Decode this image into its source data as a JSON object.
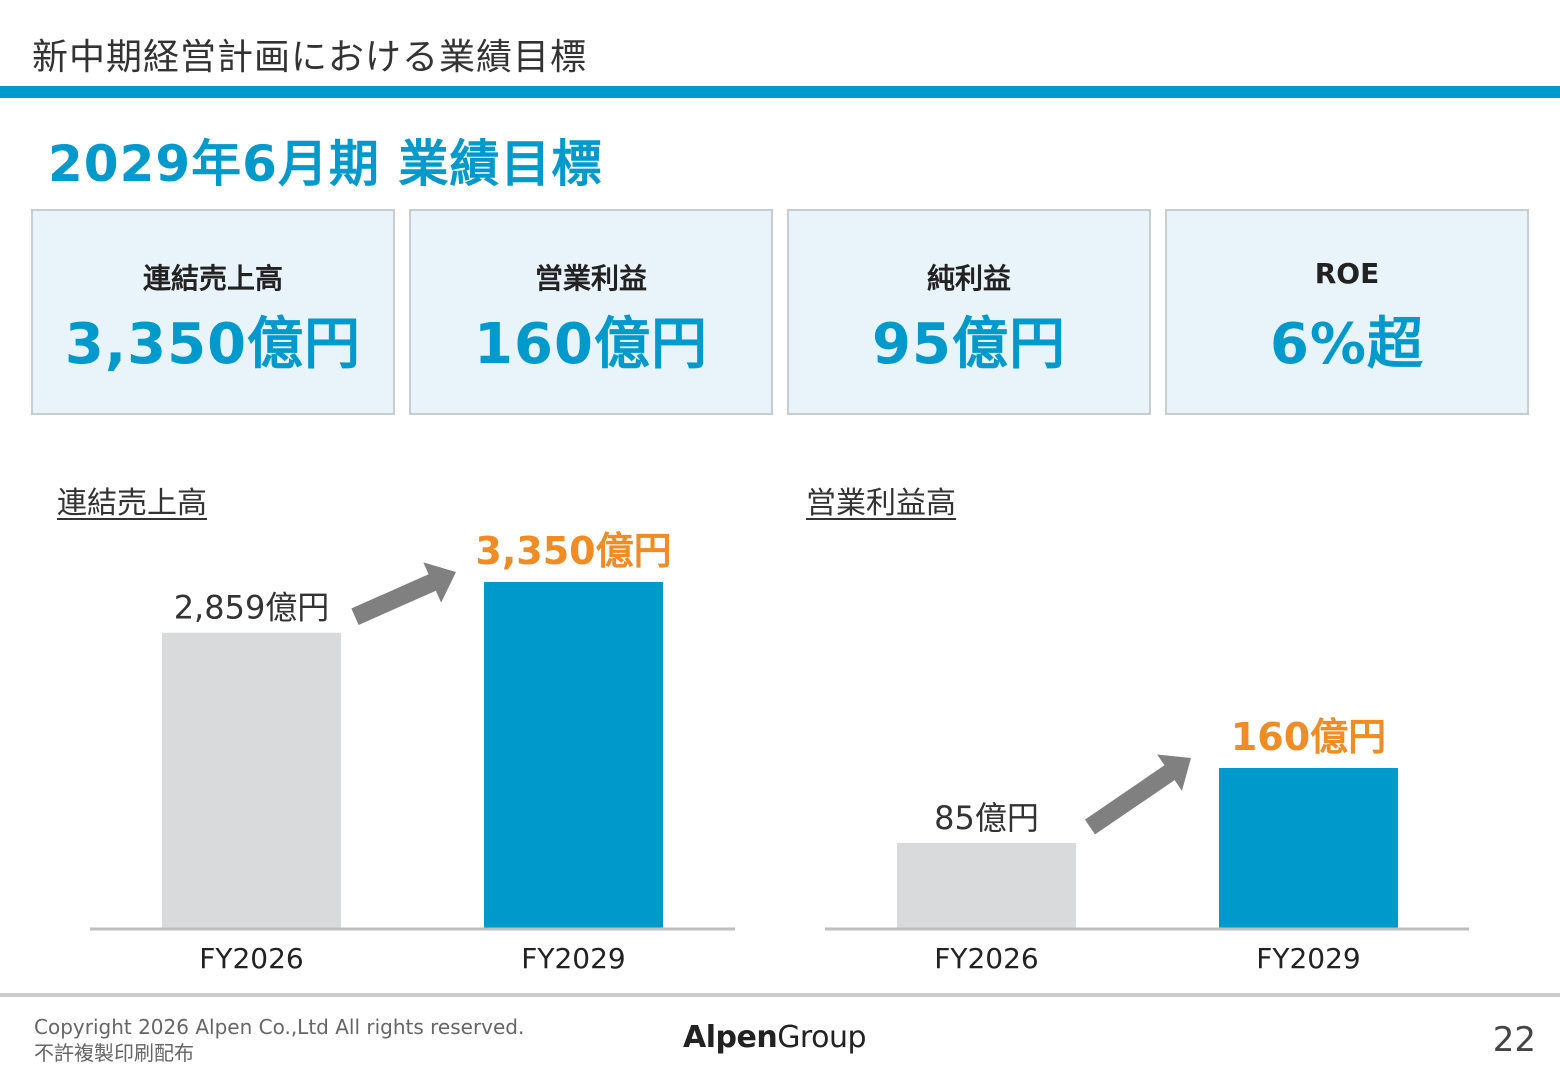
{
  "header": {
    "title": "新中期経営計画における業績目標"
  },
  "main_title": "2029年6月期 業績目標",
  "kpis": [
    {
      "label": "連結売上高",
      "value": "3,350億円"
    },
    {
      "label": "営業利益",
      "value": "160億円"
    },
    {
      "label": "純利益",
      "value": "95億円"
    },
    {
      "label": "ROE",
      "value": "6%超"
    }
  ],
  "colors": {
    "accent": "#0099cc",
    "highlight": "#f08c24",
    "baseline_bar": "#d9dadb",
    "arrow": "#808080"
  },
  "chart_data": [
    {
      "type": "bar",
      "title": "連結売上高",
      "categories": [
        "FY2026",
        "FY2029"
      ],
      "values": [
        2859,
        3350
      ],
      "value_labels": [
        "2,859億円",
        "3,350億円"
      ],
      "unit": "億円",
      "ylim": [
        0,
        3350
      ],
      "grid": false,
      "legend": "none",
      "bar_colors": [
        "#d9dadb",
        "#0099cc"
      ],
      "annotation": "arrow"
    },
    {
      "type": "bar",
      "title": "営業利益高",
      "categories": [
        "FY2026",
        "FY2029"
      ],
      "values": [
        85,
        160
      ],
      "value_labels": [
        "85億円",
        "160億円"
      ],
      "unit": "億円",
      "ylim": [
        0,
        348
      ],
      "grid": false,
      "legend": "none",
      "bar_colors": [
        "#d9dadb",
        "#0099cc"
      ],
      "annotation": "arrow"
    }
  ],
  "footer": {
    "copyright_line1": "Copyright 2026 Alpen Co.,Ltd All rights reserved.",
    "copyright_line2": "不許複製印刷配布",
    "logo_bold": "Alpen",
    "logo_regular": "Group",
    "page_number": "22"
  }
}
